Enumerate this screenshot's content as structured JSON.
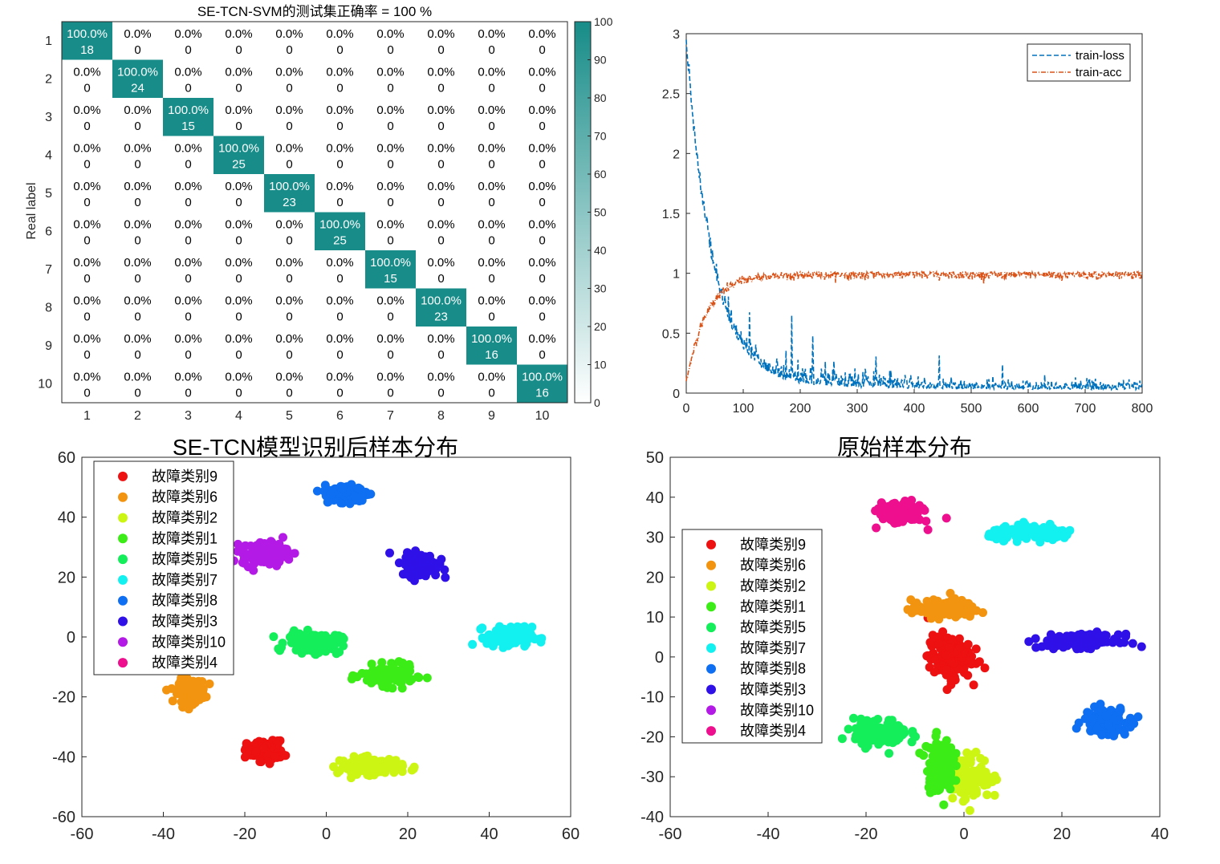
{
  "chart_data": [
    {
      "type": "heatmap",
      "title": "SE-TCN-SVM的测试集正确率 = 100 %",
      "ylabel": "Real label",
      "xlabel": "",
      "labels": [
        "1",
        "2",
        "3",
        "4",
        "5",
        "6",
        "7",
        "8",
        "9",
        "10"
      ],
      "diag_counts": [
        18,
        24,
        15,
        25,
        23,
        25,
        15,
        23,
        16,
        16
      ],
      "diag_percent": "100.0%",
      "off_percent": "0.0%",
      "off_count": "0",
      "colorbar_ticks": [
        "100",
        "90",
        "80",
        "70",
        "60",
        "50",
        "40",
        "30",
        "20",
        "10",
        "0"
      ],
      "colors": {
        "high": "#178c88",
        "low": "#ffffff"
      }
    },
    {
      "type": "line",
      "title": "",
      "xlim": [
        0,
        800
      ],
      "ylim": [
        0,
        3
      ],
      "xticks": [
        "0",
        "100",
        "200",
        "300",
        "400",
        "500",
        "600",
        "700",
        "800"
      ],
      "yticks": [
        "0",
        "0.5",
        "1",
        "1.5",
        "2",
        "2.5",
        "3"
      ],
      "legend_position": "top-right",
      "series": [
        {
          "name": "train-loss",
          "style": "dashed",
          "color": "#0072bd",
          "start": 2.85,
          "end": 0.02
        },
        {
          "name": "train-acc",
          "style": "dash-dot",
          "color": "#d95319",
          "start": 0.08,
          "end": 1.0
        }
      ],
      "points": 800
    },
    {
      "type": "scatter",
      "title": "SE-TCN模型识别后样本分布",
      "xlim": [
        -60,
        60
      ],
      "ylim": [
        -60,
        60
      ],
      "xticks": [
        "-60",
        "-40",
        "-20",
        "0",
        "20",
        "40",
        "60"
      ],
      "yticks": [
        "-60",
        "-40",
        "-20",
        "0",
        "20",
        "40",
        "60"
      ],
      "legend_position": "top-left",
      "series": [
        {
          "name": "故障类别9",
          "color": "#ee1111",
          "center": [
            -15,
            -38
          ],
          "spread": [
            4,
            3
          ]
        },
        {
          "name": "故障类别6",
          "color": "#f39410",
          "center": [
            -33,
            -18
          ],
          "spread": [
            3,
            3.5
          ]
        },
        {
          "name": "故障类别2",
          "color": "#ccf514",
          "center": [
            11,
            -43
          ],
          "spread": [
            7,
            2.5
          ]
        },
        {
          "name": "故障类别1",
          "color": "#3cec16",
          "center": [
            15,
            -13
          ],
          "spread": [
            6,
            3
          ]
        },
        {
          "name": "故障类别5",
          "color": "#14ee5a",
          "center": [
            -3,
            -2
          ],
          "spread": [
            6,
            3
          ]
        },
        {
          "name": "故障类别7",
          "color": "#13f0f0",
          "center": [
            45,
            0
          ],
          "spread": [
            5,
            3
          ]
        },
        {
          "name": "故障类别8",
          "color": "#0f6ff2",
          "center": [
            5,
            48
          ],
          "spread": [
            5,
            2.5
          ]
        },
        {
          "name": "故障类别3",
          "color": "#2f11e8",
          "center": [
            23,
            24
          ],
          "spread": [
            4,
            3.5
          ]
        },
        {
          "name": "故障类别10",
          "color": "#b41ae6",
          "center": [
            -15,
            28
          ],
          "spread": [
            5,
            3.5
          ]
        },
        {
          "name": "故障类别4",
          "color": "#ee0f8e",
          "center": [
            0,
            0
          ],
          "spread": [
            0,
            0
          ],
          "count": 0
        }
      ]
    },
    {
      "type": "scatter",
      "title": "原始样本分布",
      "xlim": [
        -60,
        40
      ],
      "ylim": [
        -40,
        50
      ],
      "xticks": [
        "-60",
        "-40",
        "-20",
        "0",
        "20",
        "40"
      ],
      "yticks": [
        "-40",
        "-30",
        "-20",
        "-10",
        "0",
        "10",
        "20",
        "30",
        "40",
        "50"
      ],
      "legend_position": "top-left",
      "series": [
        {
          "name": "故障类别9",
          "color": "#ee1111",
          "center": [
            -3,
            0
          ],
          "spread": [
            4,
            5
          ]
        },
        {
          "name": "故障类别6",
          "color": "#f39410",
          "center": [
            -4,
            12
          ],
          "spread": [
            6,
            2
          ]
        },
        {
          "name": "故障类别2",
          "color": "#ccf514",
          "center": [
            1,
            -30
          ],
          "spread": [
            4,
            5
          ]
        },
        {
          "name": "故障类别1",
          "color": "#3cec16",
          "center": [
            -5,
            -27
          ],
          "spread": [
            2.5,
            6
          ]
        },
        {
          "name": "故障类别5",
          "color": "#14ee5a",
          "center": [
            -17,
            -19
          ],
          "spread": [
            5,
            3
          ]
        },
        {
          "name": "故障类别7",
          "color": "#13f0f0",
          "center": [
            14,
            31
          ],
          "spread": [
            8,
            1.5
          ]
        },
        {
          "name": "故障类别8",
          "color": "#0f6ff2",
          "center": [
            29,
            -16
          ],
          "spread": [
            4,
            3
          ]
        },
        {
          "name": "故障类别3",
          "color": "#2f11e8",
          "center": [
            24,
            4
          ],
          "spread": [
            7,
            1.5
          ]
        },
        {
          "name": "故障类别10",
          "color": "#b41ae6",
          "center": [
            0,
            0
          ],
          "spread": [
            0,
            0
          ],
          "count": 0
        },
        {
          "name": "故障类别4",
          "color": "#ee0f8e",
          "center": [
            -13,
            36
          ],
          "spread": [
            4,
            2.5
          ]
        }
      ]
    }
  ]
}
